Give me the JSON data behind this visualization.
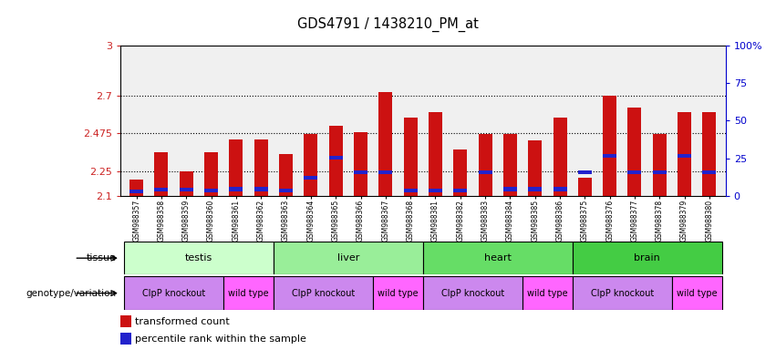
{
  "title": "GDS4791 / 1438210_PM_at",
  "samples": [
    "GSM988357",
    "GSM988358",
    "GSM988359",
    "GSM988360",
    "GSM988361",
    "GSM988362",
    "GSM988363",
    "GSM988364",
    "GSM988365",
    "GSM988366",
    "GSM988367",
    "GSM988368",
    "GSM988381",
    "GSM988382",
    "GSM988383",
    "GSM988384",
    "GSM988385",
    "GSM988386",
    "GSM988375",
    "GSM988376",
    "GSM988377",
    "GSM988378",
    "GSM988379",
    "GSM988380"
  ],
  "bar_heights": [
    2.2,
    2.36,
    2.25,
    2.36,
    2.44,
    2.44,
    2.35,
    2.47,
    2.52,
    2.48,
    2.72,
    2.57,
    2.6,
    2.38,
    2.47,
    2.47,
    2.43,
    2.57,
    2.21,
    2.7,
    2.63,
    2.47,
    2.6,
    2.6
  ],
  "blue_marker_heights": [
    2.115,
    2.125,
    2.125,
    2.12,
    2.13,
    2.13,
    2.12,
    2.2,
    2.32,
    2.23,
    2.23,
    2.12,
    2.12,
    2.12,
    2.23,
    2.13,
    2.13,
    2.13,
    2.23,
    2.33,
    2.23,
    2.23,
    2.33,
    2.23
  ],
  "ymin": 2.1,
  "ymax": 3.0,
  "yticks": [
    2.1,
    2.25,
    2.475,
    2.7,
    3.0
  ],
  "ytick_labels": [
    "2.1",
    "2.25",
    "2.475",
    "2.7",
    "3"
  ],
  "right_yticks": [
    0,
    25,
    50,
    75,
    100
  ],
  "right_ytick_labels": [
    "0",
    "25",
    "50",
    "75",
    "100%"
  ],
  "tissue_groups": [
    {
      "label": "testis",
      "start": 0,
      "end": 6,
      "color": "#ccffcc"
    },
    {
      "label": "liver",
      "start": 6,
      "end": 12,
      "color": "#99ee99"
    },
    {
      "label": "heart",
      "start": 12,
      "end": 18,
      "color": "#66dd66"
    },
    {
      "label": "brain",
      "start": 18,
      "end": 24,
      "color": "#44cc44"
    }
  ],
  "genotype_groups": [
    {
      "label": "ClpP knockout",
      "start": 0,
      "end": 4,
      "color": "#cc88ee"
    },
    {
      "label": "wild type",
      "start": 4,
      "end": 6,
      "color": "#ff66ff"
    },
    {
      "label": "ClpP knockout",
      "start": 6,
      "end": 10,
      "color": "#cc88ee"
    },
    {
      "label": "wild type",
      "start": 10,
      "end": 12,
      "color": "#ff66ff"
    },
    {
      "label": "ClpP knockout",
      "start": 12,
      "end": 16,
      "color": "#cc88ee"
    },
    {
      "label": "wild type",
      "start": 16,
      "end": 18,
      "color": "#ff66ff"
    },
    {
      "label": "ClpP knockout",
      "start": 18,
      "end": 22,
      "color": "#cc88ee"
    },
    {
      "label": "wild type",
      "start": 22,
      "end": 24,
      "color": "#ff66ff"
    }
  ],
  "bar_color": "#cc1111",
  "blue_color": "#2222cc",
  "left_label_color": "#cc2222",
  "right_label_color": "#0000cc",
  "grid_color": "#333333",
  "tissue_label": "tissue",
  "geno_label": "genotype/variation",
  "legend1": "transformed count",
  "legend2": "percentile rank within the sample"
}
